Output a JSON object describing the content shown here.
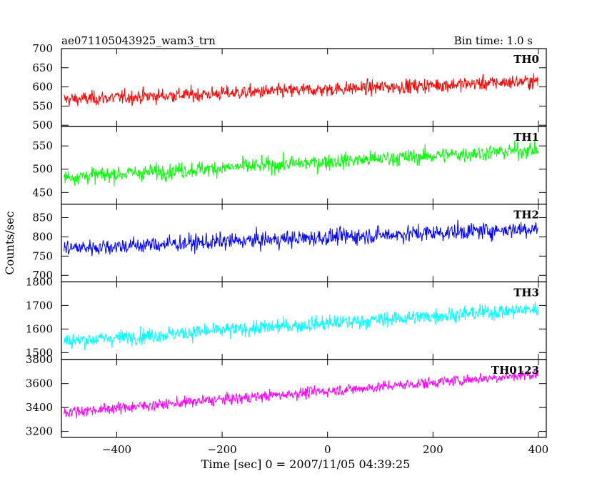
{
  "chart_data": {
    "type": "line",
    "title_left": "ae071105043925_wam3_trn",
    "title_right": "Bin time: 1.0 s",
    "xlabel": "Time [sec] 0 = 2007/11/05 04:39:25",
    "ylabel": "Counts/sec",
    "xlim": [
      -505,
      415
    ],
    "xticks": [
      -400,
      -200,
      0,
      200,
      400
    ],
    "xtick_labels": [
      "−400",
      "−200",
      "0",
      "200",
      "400"
    ],
    "x_start": -500,
    "x_end": 399,
    "x_step": 1,
    "grid": false,
    "panels": [
      {
        "name": "TH0",
        "color": "#ff0000",
        "ylim": [
          497,
          700
        ],
        "yticks": [
          500,
          550,
          600,
          650,
          700
        ],
        "ytick_labels": [
          "500",
          "550",
          "600",
          "650",
          "700"
        ],
        "trend_start": 567,
        "trend_end": 615,
        "noise": 24
      },
      {
        "name": "TH1",
        "color": "#00ff00",
        "ylim": [
          425,
          592
        ],
        "yticks": [
          450,
          500,
          550
        ],
        "ytick_labels": [
          "450",
          "500",
          "550"
        ],
        "trend_start": 483,
        "trend_end": 542,
        "noise": 22
      },
      {
        "name": "TH2",
        "color": "#0000ff",
        "ylim": [
          683,
          885
        ],
        "yticks": [
          700,
          750,
          800,
          850
        ],
        "ytick_labels": [
          "700",
          "750",
          "800",
          "850"
        ],
        "trend_start": 770,
        "trend_end": 822,
        "noise": 28
      },
      {
        "name": "TH3",
        "color": "#00ffff",
        "ylim": [
          1470,
          1800
        ],
        "yticks": [
          1500,
          1600,
          1700,
          1800
        ],
        "ytick_labels": [
          "1500",
          "1600",
          "1700",
          "1800"
        ],
        "trend_start": 1548,
        "trend_end": 1685,
        "noise": 42
      },
      {
        "name": "TH0123",
        "color": "#ff00ff",
        "ylim": [
          3150,
          3800
        ],
        "yticks": [
          3200,
          3400,
          3600,
          3800
        ],
        "ytick_labels": [
          "3200",
          "3400",
          "3600",
          "3800"
        ],
        "trend_start": 3360,
        "trend_end": 3680,
        "noise": 60
      }
    ]
  }
}
